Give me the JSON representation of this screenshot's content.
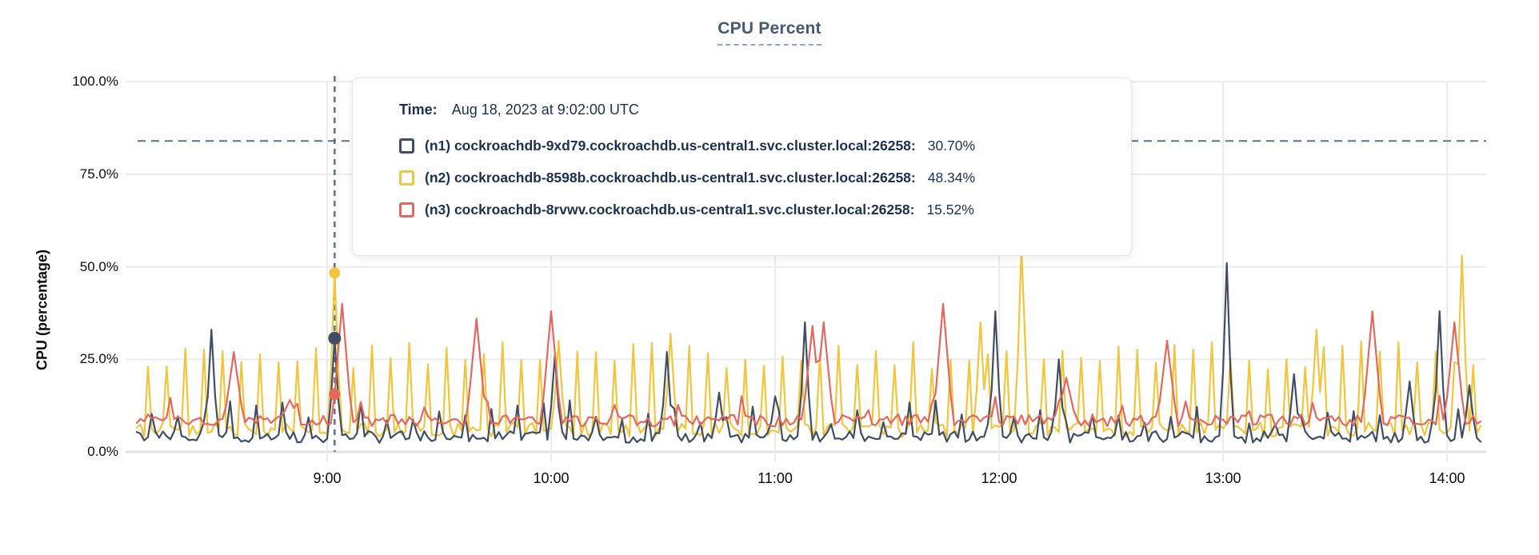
{
  "header": {
    "title": "CPU Percent"
  },
  "tooltip": {
    "time_label": "Time:",
    "time_value": "Aug 18, 2023 at 9:02:00 UTC",
    "rows": [
      {
        "label": "(n1) cockroachdb-9xd79.cockroachdb.us-central1.svc.cluster.local:26258:",
        "value": "30.70%"
      },
      {
        "label": "(n2) cockroachdb-8598b.cockroachdb.us-central1.svc.cluster.local:26258:",
        "value": "48.34%"
      },
      {
        "label": "(n3) cockroachdb-8rvwv.cockroachdb.us-central1.svc.cluster.local:26258:",
        "value": "15.52%"
      }
    ]
  },
  "chart_data": {
    "type": "line",
    "title": "CPU Percent",
    "ylabel": "CPU (percentage)",
    "ylim": [
      0,
      100
    ],
    "grid": true,
    "y_ticks": [
      {
        "label": "100.0%",
        "value": 100
      },
      {
        "label": "75.0%",
        "value": 75
      },
      {
        "label": "50.0%",
        "value": 50
      },
      {
        "label": "25.0%",
        "value": 25
      },
      {
        "label": "0.0%",
        "value": 0
      }
    ],
    "x_ticks": [
      {
        "label": "9:00",
        "minute": 540
      },
      {
        "label": "10:00",
        "minute": 600
      },
      {
        "label": "11:00",
        "minute": 660
      },
      {
        "label": "12:00",
        "minute": 720
      },
      {
        "label": "13:00",
        "minute": 780
      },
      {
        "label": "14:00",
        "minute": 840
      }
    ],
    "x_range_minutes": [
      489,
      849
    ],
    "threshold_percent": 84,
    "hover": {
      "minute": 542,
      "time_label": "9:02:00 UTC",
      "values": [
        30.7,
        48.34,
        15.52
      ]
    },
    "series": [
      {
        "name": "(n1) cockroachdb-9xd79.cockroachdb.us-central1.svc.cluster.local:26258",
        "color": "#404d63",
        "base": 4,
        "noise_amp": 1.6,
        "seed": 12.9898,
        "spike_period": 7,
        "spike_offset": 3,
        "spike_min": 7,
        "spike_max": 14,
        "peak_halfwidth": 1,
        "peaks": [
          [
            509,
            33
          ],
          [
            542,
            30.7
          ],
          [
            601,
            26
          ],
          [
            631,
            27
          ],
          [
            645,
            16
          ],
          [
            660,
            15
          ],
          [
            668,
            35
          ],
          [
            719,
            38
          ],
          [
            736,
            25
          ],
          [
            781,
            51
          ],
          [
            799,
            21
          ],
          [
            830,
            19
          ],
          [
            838,
            38
          ],
          [
            846,
            18
          ]
        ]
      },
      {
        "name": "(n2) cockroachdb-8598b.cockroachdb.us-central1.svc.cluster.local:26258",
        "color": "#f0c63e",
        "base": 6,
        "noise_amp": 2.0,
        "seed": 78.233,
        "spike_period": 5,
        "spike_offset": 2,
        "spike_min": 22,
        "spike_max": 30,
        "peak_halfwidth": 1,
        "peaks": [
          [
            542,
            48.34
          ],
          [
            602,
            30
          ],
          [
            632,
            32
          ],
          [
            715,
            35
          ],
          [
            726,
            55
          ],
          [
            805,
            33
          ],
          [
            844,
            53
          ]
        ]
      },
      {
        "name": "(n3) cockroachdb-8rvwv.cockroachdb.us-central1.svc.cluster.local:26258",
        "color": "#e2685f",
        "base": 8.5,
        "noise_amp": 1.6,
        "seed": 37.719,
        "spike_period": 17,
        "spike_offset": 5,
        "spike_min": 11,
        "spike_max": 16,
        "peak_halfwidth": 2,
        "peaks": [
          [
            515,
            27
          ],
          [
            530,
            14
          ],
          [
            544,
            40
          ],
          [
            580,
            36
          ],
          [
            600,
            38
          ],
          [
            670,
            34
          ],
          [
            673,
            35
          ],
          [
            705,
            40
          ],
          [
            738,
            20
          ],
          [
            765,
            30
          ],
          [
            820,
            38
          ],
          [
            842,
            35
          ]
        ]
      }
    ],
    "z_order": [
      1,
      0,
      2
    ],
    "legend_position": "tooltip-overlay"
  },
  "colors": {
    "title": "#475872",
    "tooltip_text": "#1c3150",
    "gridline": "#ececec",
    "axis_line": "#e2e2e2",
    "dashed_guides": "#5a7589"
  }
}
